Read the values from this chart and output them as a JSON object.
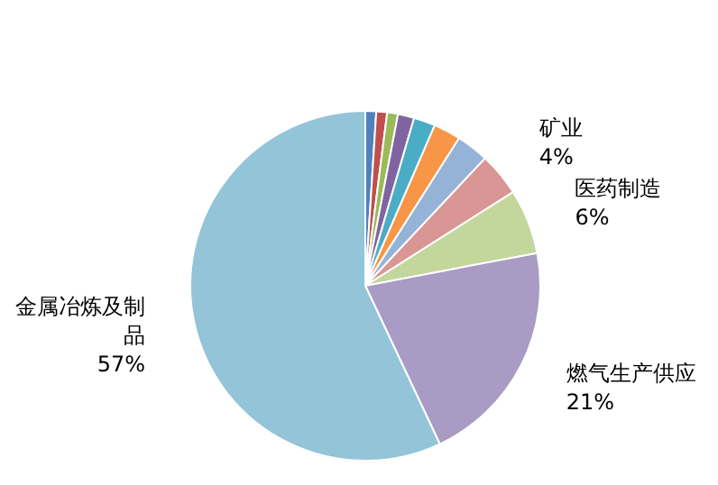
{
  "chart_data": {
    "type": "pie",
    "categories": [
      null,
      null,
      null,
      null,
      null,
      null,
      null,
      "矿业",
      "医药制造",
      "燃气生产供应",
      "金属冶炼及制品"
    ],
    "values": [
      1,
      1,
      1,
      1.5,
      2,
      2.5,
      3,
      4,
      6,
      21,
      57
    ],
    "value_labels": [
      null,
      null,
      null,
      null,
      null,
      null,
      null,
      "4%",
      "6%",
      "21%",
      "57%"
    ],
    "colors": [
      "#4f81bd",
      "#c0504d",
      "#9bbb59",
      "#8064a2",
      "#4bacc6",
      "#f79646",
      "#95b3d7",
      "#d99694",
      "#c3d69b",
      "#a99bc3",
      "#93c4d8"
    ]
  }
}
